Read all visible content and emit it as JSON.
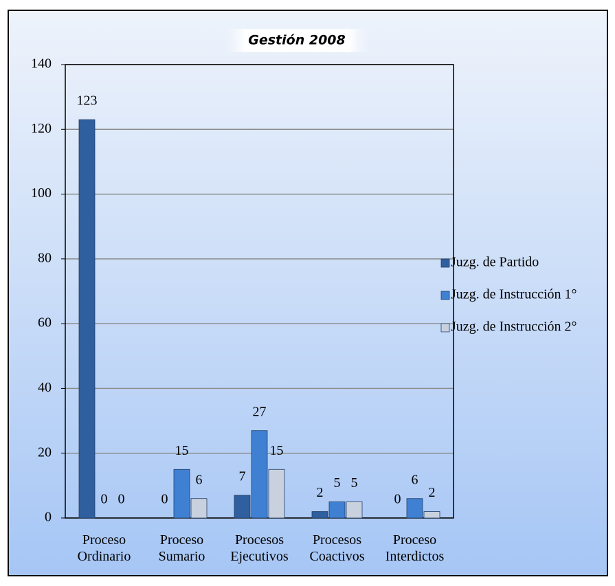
{
  "chart_data": {
    "type": "bar",
    "title": "Gestión 2008",
    "categories": [
      "Proceso Ordinario",
      "Proceso Sumario",
      "Procesos Ejecutivos",
      "Procesos Coactivos",
      "Proceso Interdictos"
    ],
    "series": [
      {
        "name": "Juzg. de Partido",
        "color": "#2f5f9f",
        "values": [
          123,
          0,
          7,
          2,
          0
        ]
      },
      {
        "name": "Juzg. de Instrucción 1°",
        "color": "#3f80d2",
        "values": [
          0,
          15,
          27,
          5,
          6
        ]
      },
      {
        "name": "Juzg. de Instrucción 2°",
        "color": "#c9d1de",
        "values": [
          0,
          6,
          15,
          5,
          2
        ]
      }
    ],
    "ylim": [
      0,
      140
    ],
    "yticks": [
      0,
      20,
      40,
      60,
      80,
      100,
      120,
      140
    ],
    "grid": true,
    "legend": "right"
  }
}
